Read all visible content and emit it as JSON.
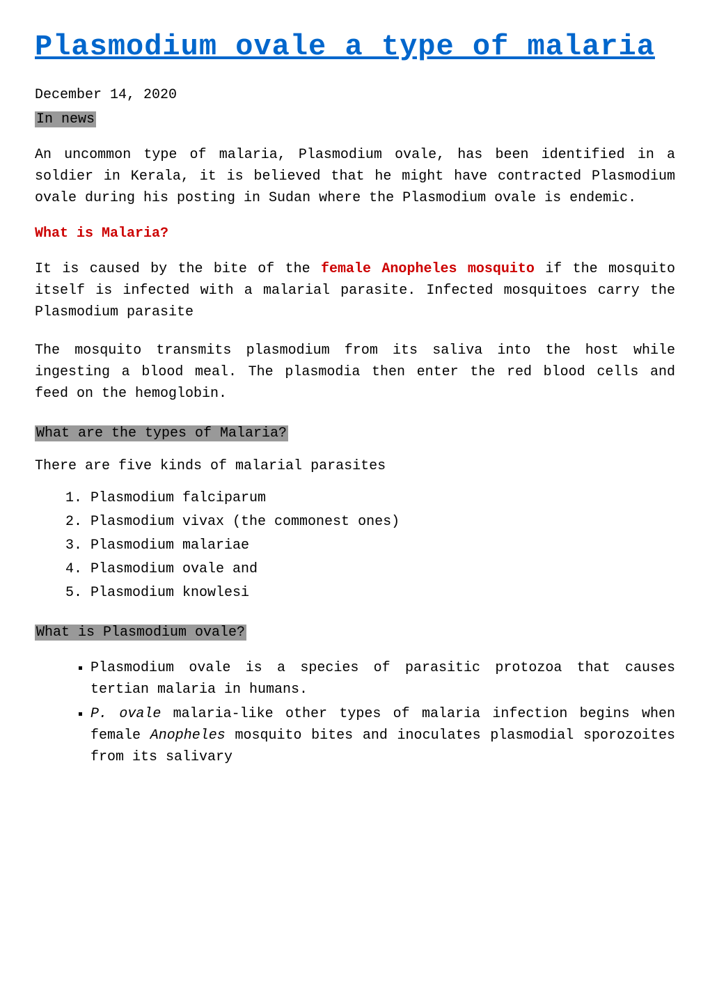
{
  "title": "Plasmodium ovale a type of malaria",
  "date": "December 14, 2020",
  "labels": {
    "in_news": "In news",
    "types": "What are the types of Malaria?",
    "ovale": "What is Plasmodium ovale?"
  },
  "in_news_para": "An uncommon type of malaria, Plasmodium ovale, has been identified in a soldier in Kerala, it is believed that he might have contracted Plasmodium ovale during his posting in Sudan where the Plasmodium ovale is endemic.",
  "what_is_malaria_heading": "What is Malaria?",
  "malaria_para1_pre": "It is caused by the bite of the ",
  "malaria_para1_bold": "female Anopheles mosquito",
  "malaria_para1_post": " if the mosquito itself is infected with a malarial parasite. Infected mosquitoes carry the Plasmodium parasite",
  "malaria_para2": "The mosquito transmits plasmodium from its saliva into the host while ingesting a blood meal. The plasmodia then enter the red blood cells and feed on the hemoglobin.",
  "types_intro": " There are five kinds of malarial parasites",
  "types_list": [
    "Plasmodium falciparum",
    "Plasmodium vivax (the commonest ones)",
    "Plasmodium malariae",
    "Plasmodium ovale and",
    "Plasmodium knowlesi"
  ],
  "ovale_bullets": {
    "b1": "Plasmodium ovale is a species of parasitic protozoa that causes tertian malaria in humans.",
    "b2_i1": "P. ovale",
    "b2_mid1": " malaria-like other types of malaria infection begins when female ",
    "b2_i2": "Anopheles",
    "b2_mid2": " mosquito bites and inoculates plasmodial sporozoites from its salivary"
  },
  "colors": {
    "link": "#0066cc",
    "red": "#cc0000",
    "label_bg": "#999999",
    "text": "#000000",
    "bg": "#ffffff"
  },
  "typography": {
    "title_fontsize": 42,
    "body_fontsize": 20,
    "font_family": "Courier New"
  }
}
